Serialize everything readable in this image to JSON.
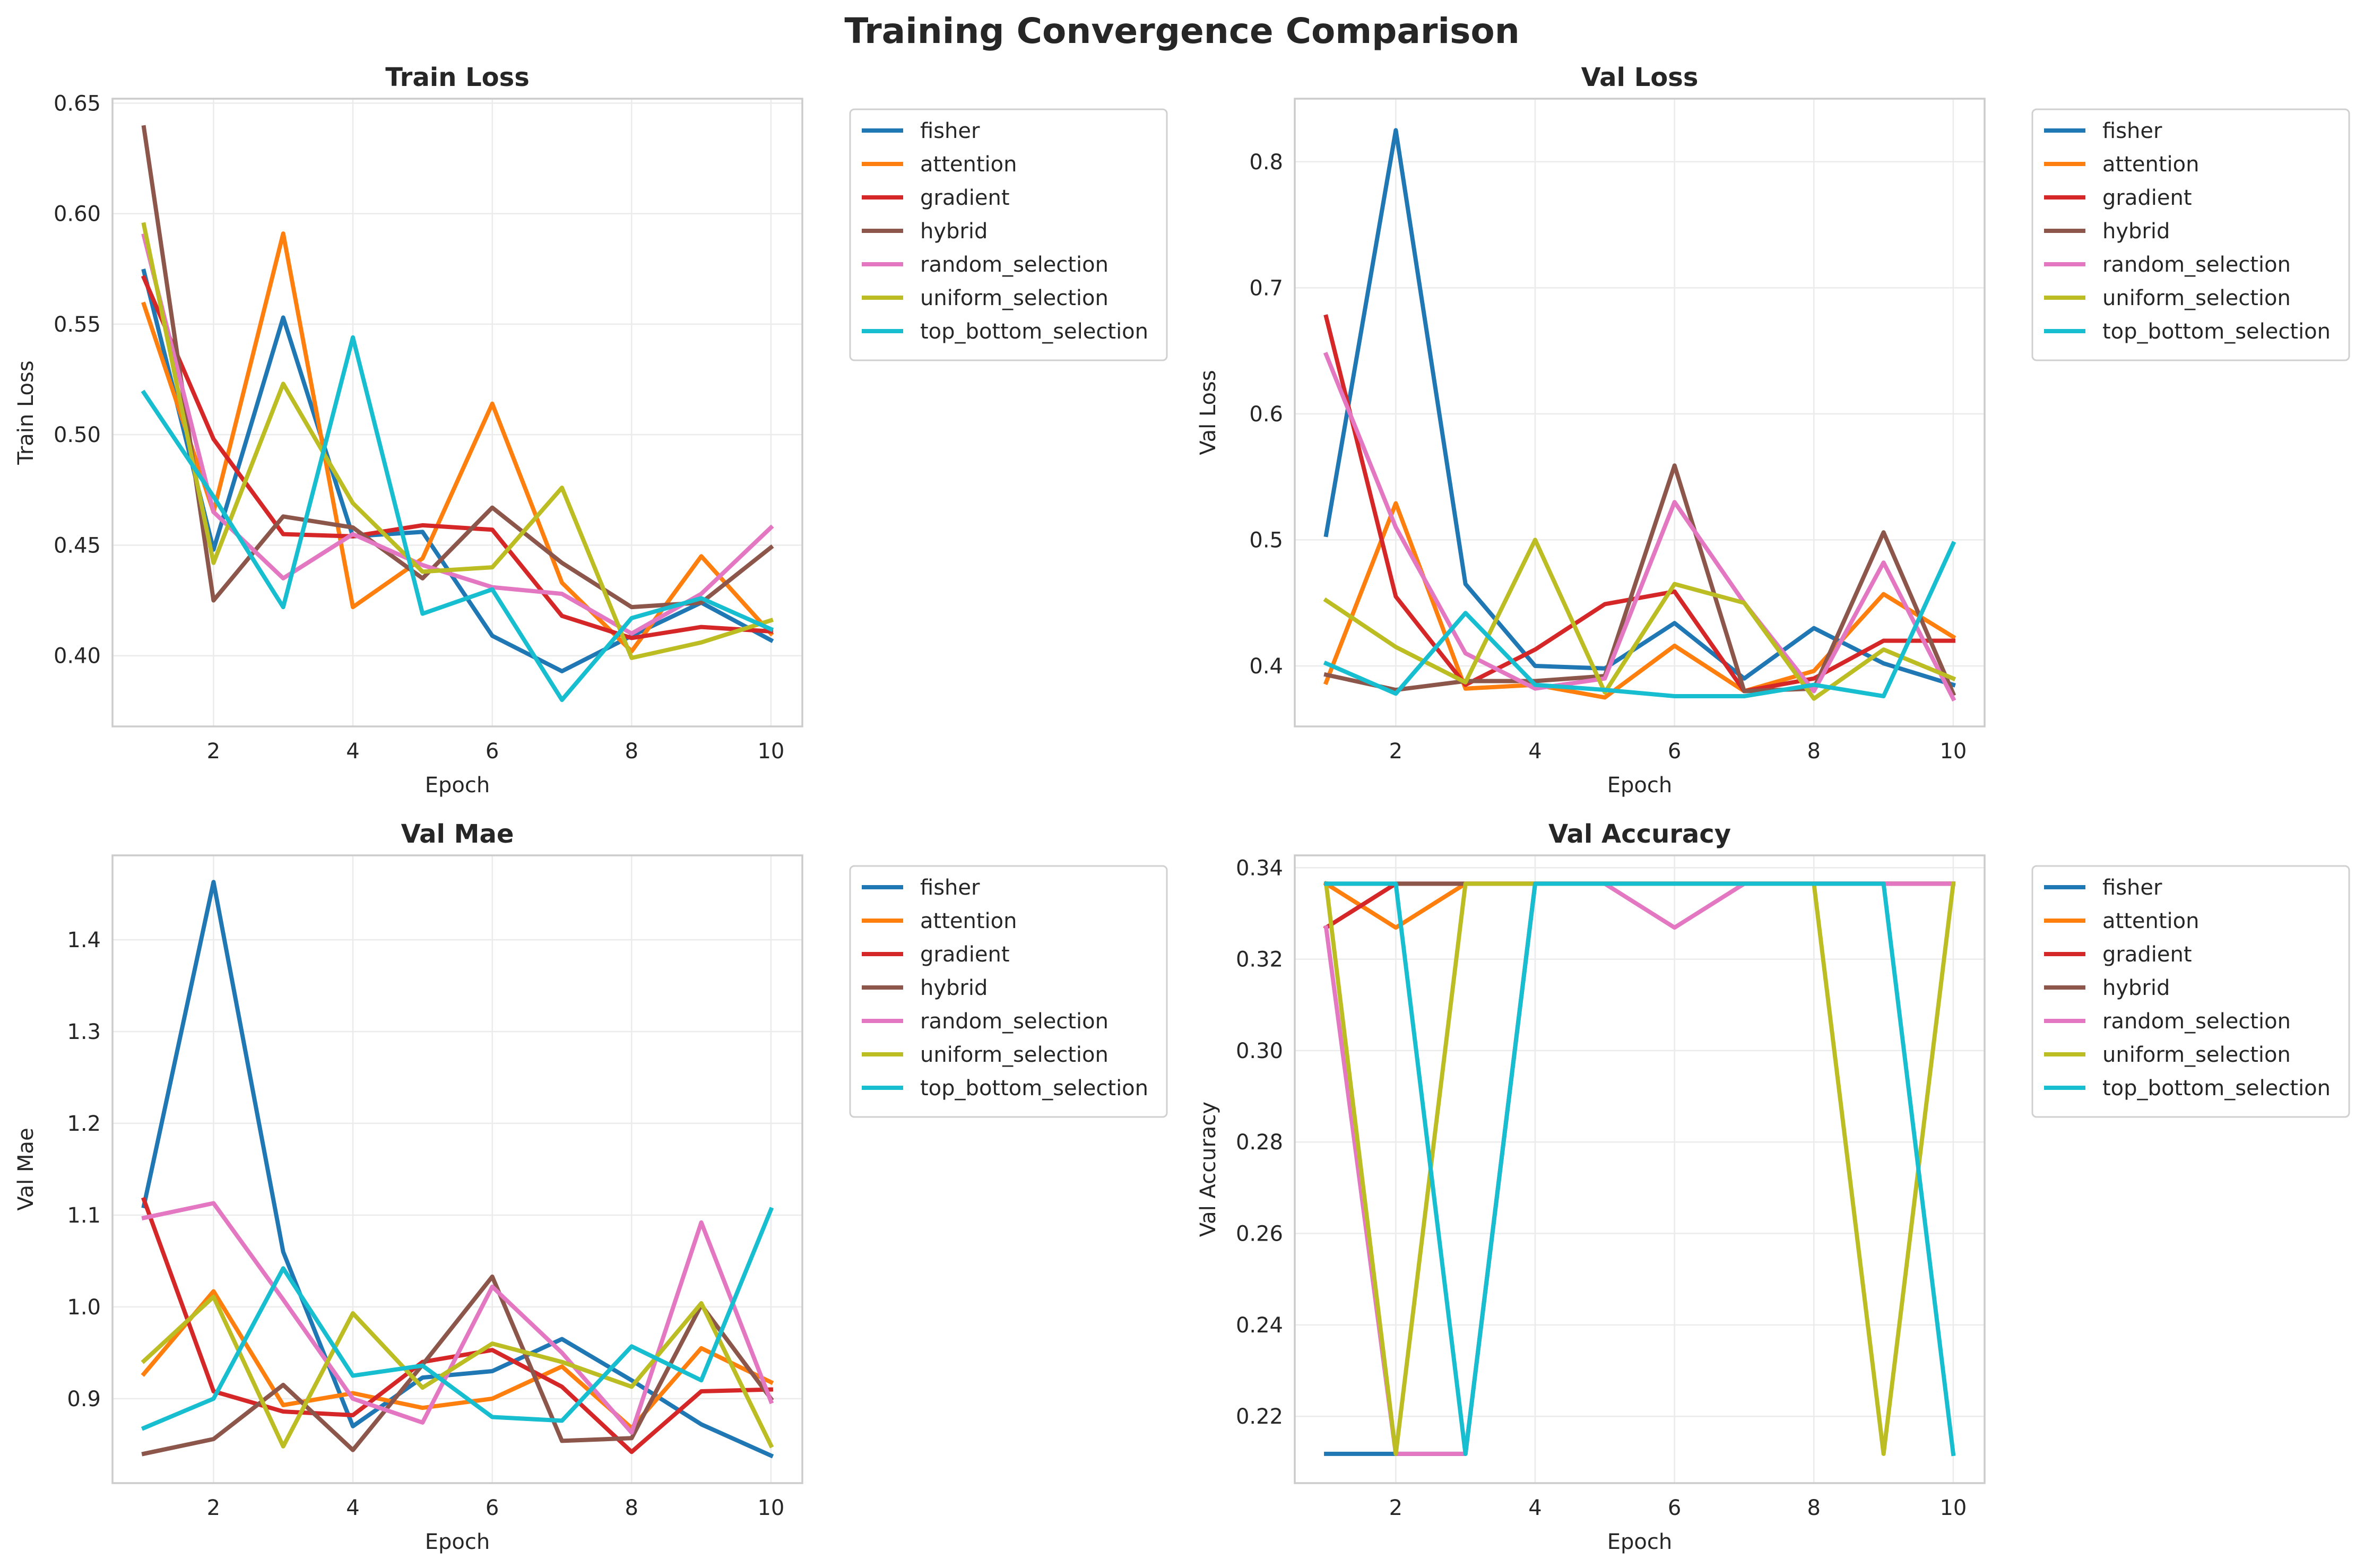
{
  "suptitle": "Training Convergence Comparison",
  "colors": {
    "fisher": "#1f77b4",
    "attention": "#ff7f0e",
    "gradient": "#d62728",
    "hybrid": "#8c564b",
    "random_selection": "#e377c2",
    "uniform_selection": "#bcbd22",
    "top_bottom_selection": "#17becf"
  },
  "chart_data": [
    {
      "type": "line",
      "title": "Train Loss",
      "xlabel": "Epoch",
      "ylabel": "Train Loss",
      "xlim": [
        0.55,
        10.45
      ],
      "ylim": [
        0.368,
        0.652
      ],
      "xticks": [
        2,
        4,
        6,
        8,
        10
      ],
      "xtick_labels": [
        "2",
        "4",
        "6",
        "8",
        "10"
      ],
      "yticks": [
        0.4,
        0.45,
        0.5,
        0.55,
        0.6,
        0.65
      ],
      "ytick_labels": [
        "0.40",
        "0.45",
        "0.50",
        "0.55",
        "0.60",
        "0.65"
      ],
      "grid": true,
      "legend": "outside-upper-right",
      "x": [
        1,
        2,
        3,
        4,
        5,
        6,
        7,
        8,
        9,
        10
      ],
      "series": [
        {
          "name": "fisher",
          "values": [
            0.574,
            0.448,
            0.553,
            0.454,
            0.456,
            0.409,
            0.393,
            0.409,
            0.424,
            0.407
          ]
        },
        {
          "name": "attention",
          "values": [
            0.559,
            0.465,
            0.591,
            0.422,
            0.444,
            0.514,
            0.433,
            0.402,
            0.445,
            0.41
          ]
        },
        {
          "name": "gradient",
          "values": [
            0.571,
            0.498,
            0.455,
            0.454,
            0.459,
            0.457,
            0.418,
            0.408,
            0.413,
            0.411
          ]
        },
        {
          "name": "hybrid",
          "values": [
            0.639,
            0.425,
            0.463,
            0.458,
            0.435,
            0.467,
            0.442,
            0.422,
            0.424,
            0.449
          ]
        },
        {
          "name": "random_selection",
          "values": [
            0.59,
            0.465,
            0.435,
            0.455,
            0.441,
            0.431,
            0.428,
            0.41,
            0.428,
            0.458
          ]
        },
        {
          "name": "uniform_selection",
          "values": [
            0.595,
            0.442,
            0.523,
            0.469,
            0.438,
            0.44,
            0.476,
            0.399,
            0.406,
            0.416
          ]
        },
        {
          "name": "top_bottom_selection",
          "values": [
            0.519,
            0.472,
            0.422,
            0.544,
            0.419,
            0.43,
            0.38,
            0.417,
            0.426,
            0.412
          ]
        }
      ]
    },
    {
      "type": "line",
      "title": "Val Loss",
      "xlabel": "Epoch",
      "ylabel": "Val Loss",
      "xlim": [
        0.55,
        10.45
      ],
      "ylim": [
        0.352,
        0.85
      ],
      "xticks": [
        2,
        4,
        6,
        8,
        10
      ],
      "xtick_labels": [
        "2",
        "4",
        "6",
        "8",
        "10"
      ],
      "yticks": [
        0.4,
        0.5,
        0.6,
        0.7,
        0.8
      ],
      "ytick_labels": [
        "0.4",
        "0.5",
        "0.6",
        "0.7",
        "0.8"
      ],
      "grid": true,
      "legend": "outside-upper-right",
      "x": [
        1,
        2,
        3,
        4,
        5,
        6,
        7,
        8,
        9,
        10
      ],
      "series": [
        {
          "name": "fisher",
          "values": [
            0.504,
            0.825,
            0.465,
            0.4,
            0.398,
            0.434,
            0.39,
            0.43,
            0.402,
            0.385
          ]
        },
        {
          "name": "attention",
          "values": [
            0.387,
            0.529,
            0.382,
            0.385,
            0.375,
            0.416,
            0.38,
            0.396,
            0.457,
            0.423
          ]
        },
        {
          "name": "gradient",
          "values": [
            0.677,
            0.455,
            0.385,
            0.413,
            0.449,
            0.459,
            0.38,
            0.39,
            0.42,
            0.42
          ]
        },
        {
          "name": "hybrid",
          "values": [
            0.393,
            0.381,
            0.388,
            0.388,
            0.392,
            0.559,
            0.38,
            0.382,
            0.506,
            0.378
          ]
        },
        {
          "name": "random_selection",
          "values": [
            0.647,
            0.51,
            0.41,
            0.382,
            0.39,
            0.53,
            0.45,
            0.38,
            0.482,
            0.374
          ]
        },
        {
          "name": "uniform_selection",
          "values": [
            0.452,
            0.415,
            0.387,
            0.5,
            0.379,
            0.465,
            0.45,
            0.374,
            0.413,
            0.39
          ]
        },
        {
          "name": "top_bottom_selection",
          "values": [
            0.402,
            0.378,
            0.442,
            0.385,
            0.381,
            0.376,
            0.376,
            0.385,
            0.376,
            0.497
          ]
        }
      ]
    },
    {
      "type": "line",
      "title": "Val Mae",
      "xlabel": "Epoch",
      "ylabel": "Val Mae",
      "xlim": [
        0.55,
        10.45
      ],
      "ylim": [
        0.808,
        1.492
      ],
      "xticks": [
        2,
        4,
        6,
        8,
        10
      ],
      "xtick_labels": [
        "2",
        "4",
        "6",
        "8",
        "10"
      ],
      "yticks": [
        0.9,
        1.0,
        1.1,
        1.2,
        1.3,
        1.4
      ],
      "ytick_labels": [
        "0.9",
        "1.0",
        "1.1",
        "1.2",
        "1.3",
        "1.4"
      ],
      "grid": true,
      "legend": "outside-upper-right",
      "x": [
        1,
        2,
        3,
        4,
        5,
        6,
        7,
        8,
        9,
        10
      ],
      "series": [
        {
          "name": "fisher",
          "values": [
            1.11,
            1.463,
            1.06,
            0.87,
            0.923,
            0.93,
            0.965,
            0.92,
            0.872,
            0.838
          ]
        },
        {
          "name": "attention",
          "values": [
            0.927,
            1.017,
            0.893,
            0.906,
            0.89,
            0.9,
            0.935,
            0.868,
            0.955,
            0.918
          ]
        },
        {
          "name": "gradient",
          "values": [
            1.117,
            0.908,
            0.886,
            0.882,
            0.94,
            0.953,
            0.913,
            0.842,
            0.908,
            0.91
          ]
        },
        {
          "name": "hybrid",
          "values": [
            0.84,
            0.856,
            0.915,
            0.844,
            0.937,
            1.033,
            0.854,
            0.857,
            1.002,
            0.9
          ]
        },
        {
          "name": "random_selection",
          "values": [
            1.097,
            1.113,
            1.008,
            0.9,
            0.874,
            1.022,
            0.95,
            0.863,
            1.092,
            0.897
          ]
        },
        {
          "name": "uniform_selection",
          "values": [
            0.941,
            1.011,
            0.848,
            0.993,
            0.912,
            0.96,
            0.94,
            0.913,
            1.004,
            0.849
          ]
        },
        {
          "name": "top_bottom_selection",
          "values": [
            0.868,
            0.9,
            1.042,
            0.925,
            0.936,
            0.88,
            0.876,
            0.957,
            0.92,
            1.106
          ]
        }
      ]
    },
    {
      "type": "line",
      "title": "Val Accuracy",
      "xlabel": "Epoch",
      "ylabel": "Val Accuracy",
      "xlim": [
        0.55,
        10.45
      ],
      "ylim": [
        0.2054,
        0.3427
      ],
      "xticks": [
        2,
        4,
        6,
        8,
        10
      ],
      "xtick_labels": [
        "2",
        "4",
        "6",
        "8",
        "10"
      ],
      "yticks": [
        0.22,
        0.24,
        0.26,
        0.28,
        0.3,
        0.32,
        0.34
      ],
      "ytick_labels": [
        "0.22",
        "0.24",
        "0.26",
        "0.28",
        "0.30",
        "0.32",
        "0.34"
      ],
      "grid": true,
      "legend": "outside-upper-right",
      "x": [
        1,
        2,
        3,
        4,
        5,
        6,
        7,
        8,
        9,
        10
      ],
      "series": [
        {
          "name": "fisher",
          "values": [
            0.2118,
            0.2118,
            0.2118,
            0.3365,
            0.3365,
            0.3365,
            0.3365,
            0.3365,
            0.3365,
            0.3365
          ]
        },
        {
          "name": "attention",
          "values": [
            0.3365,
            0.3269,
            0.3365,
            0.3365,
            0.3365,
            0.3365,
            0.3365,
            0.3365,
            0.3365,
            0.3365
          ]
        },
        {
          "name": "gradient",
          "values": [
            0.3269,
            0.3365,
            0.3365,
            0.3365,
            0.3365,
            0.3365,
            0.3365,
            0.3365,
            0.3365,
            0.3365
          ]
        },
        {
          "name": "hybrid",
          "values": [
            0.3365,
            0.3365,
            0.3365,
            0.3365,
            0.3365,
            0.3365,
            0.3365,
            0.3365,
            0.3365,
            0.3365
          ]
        },
        {
          "name": "random_selection",
          "values": [
            0.3269,
            0.2118,
            0.2118,
            0.3365,
            0.3365,
            0.3269,
            0.3365,
            0.3365,
            0.3365,
            0.3365
          ]
        },
        {
          "name": "uniform_selection",
          "values": [
            0.3365,
            0.2118,
            0.3365,
            0.3365,
            0.3365,
            0.3365,
            0.3365,
            0.3365,
            0.2118,
            0.3365
          ]
        },
        {
          "name": "top_bottom_selection",
          "values": [
            0.3365,
            0.3365,
            0.2118,
            0.3365,
            0.3365,
            0.3365,
            0.3365,
            0.3365,
            0.3365,
            0.2118
          ]
        }
      ]
    }
  ]
}
